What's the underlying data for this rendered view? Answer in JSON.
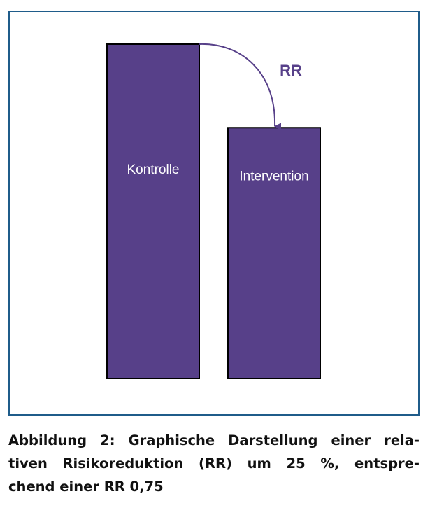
{
  "chart_data": {
    "type": "bar",
    "categories": [
      "Kontrolle",
      "Intervention"
    ],
    "values": [
      1.0,
      0.75
    ],
    "ylim": [
      0,
      1
    ],
    "grid": false,
    "annotation": {
      "text": "RR",
      "from": "Kontrolle",
      "to": "Intervention"
    }
  },
  "colors": {
    "bar_fill": "#574089",
    "arrow": "#574089",
    "annotation_text": "#574089",
    "frame": "#1f5c8a"
  },
  "caption": {
    "lines": [
      "Abbildung 2: Graphische Darstellung einer rela-",
      "tiven Risikoreduktion (RR) um 25 %, entspre-",
      "chend einer RR 0,75"
    ]
  }
}
